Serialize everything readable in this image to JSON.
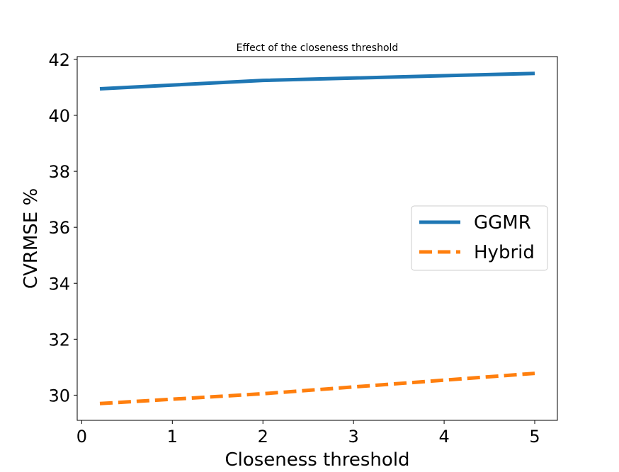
{
  "chart_data": {
    "type": "line",
    "title": "Effect of the closeness threshold",
    "xlabel": "Closeness threshold",
    "ylabel": "CVRMSE %",
    "x": [
      0.2,
      2,
      5
    ],
    "series": [
      {
        "name": "GGMR",
        "values": [
          40.95,
          41.25,
          41.5
        ],
        "color": "#1f77b4",
        "style": "solid"
      },
      {
        "name": "Hybrid",
        "values": [
          29.7,
          30.05,
          30.78
        ],
        "color": "#ff7f0e",
        "style": "dashed"
      }
    ],
    "xlim": [
      -0.05,
      5.25
    ],
    "ylim": [
      29.1,
      42.1
    ],
    "xticks": [
      0,
      1,
      2,
      3,
      4,
      5
    ],
    "yticks": [
      30,
      32,
      34,
      36,
      38,
      40,
      42
    ],
    "grid": false,
    "legend": "center-right"
  }
}
